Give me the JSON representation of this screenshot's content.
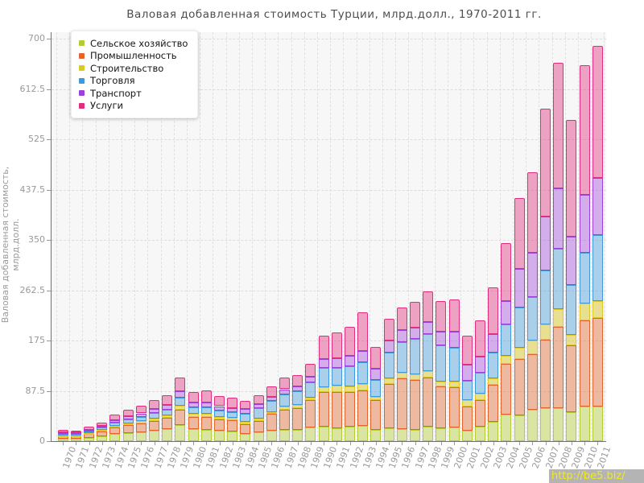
{
  "title": "Валовая добавленная стоимость Турции, млрд.долл., 1970-2011 гг.",
  "watermark": "http://be5.biz/",
  "y_axis": {
    "title": "Валовая добавленная стоимость, млрд.долл.",
    "ticks": [
      0,
      87.5,
      175,
      262.5,
      350,
      437.5,
      525,
      612.5,
      700
    ]
  },
  "chart_data": {
    "type": "bar",
    "stacked": true,
    "title": "Валовая добавленная стоимость Турции, млрд.долл., 1970-2011 гг.",
    "xlabel": "",
    "ylabel": "Валовая добавленная стоимость, млрд.долл.",
    "ylim": [
      0,
      700
    ],
    "y_ticks": [
      0,
      87.5,
      175,
      262.5,
      350,
      437.5,
      525,
      612.5,
      700
    ],
    "grid": true,
    "legend_position": "top-left",
    "units": "billions USD",
    "categories": [
      1970,
      1971,
      1972,
      1973,
      1974,
      1975,
      1976,
      1977,
      1978,
      1979,
      1980,
      1981,
      1982,
      1983,
      1984,
      1985,
      1986,
      1987,
      1988,
      1989,
      1990,
      1991,
      1992,
      1993,
      1994,
      1995,
      1996,
      1997,
      1998,
      1999,
      2000,
      2001,
      2002,
      2003,
      2004,
      2005,
      2006,
      2007,
      2008,
      2009,
      2010,
      2011
    ],
    "series": [
      {
        "name": "Сельское хозяйство",
        "color": "#b3cc33",
        "fill": "rgba(179,204,51,0.42)",
        "values": [
          4.8,
          4.6,
          6.2,
          8.5,
          12.5,
          14,
          16,
          18,
          20.5,
          28.5,
          21,
          20,
          18,
          17,
          13.2,
          15.5,
          18,
          20,
          19,
          24,
          25,
          22.5,
          25,
          26,
          20,
          22.5,
          21,
          20,
          25,
          22.5,
          24,
          18,
          25,
          33,
          46,
          45,
          55,
          58,
          58,
          51,
          60,
          60
        ]
      },
      {
        "name": "Промышленность",
        "color": "#e2632b",
        "fill": "rgba(226,99,43,0.42)",
        "values": [
          4.5,
          4.4,
          5.8,
          8.9,
          11.5,
          13.5,
          15,
          17.5,
          19.5,
          26.5,
          21.5,
          22,
          20,
          19,
          16.5,
          20,
          29,
          35,
          39,
          47,
          61,
          63,
          61,
          62.5,
          51,
          76.5,
          88,
          86,
          86,
          72.5,
          70,
          42.5,
          47,
          64.5,
          89,
          97.5,
          96.5,
          118,
          141,
          115,
          150,
          154
        ]
      },
      {
        "name": "Строительство",
        "color": "#dcc829",
        "fill": "rgba(220,200,41,0.5)",
        "values": [
          1.2,
          1.2,
          1.5,
          2,
          2.6,
          3,
          3.4,
          4,
          4.5,
          6.2,
          5,
          5.1,
          4.6,
          4.4,
          3.5,
          3.5,
          4,
          4.7,
          4.7,
          4.5,
          8,
          10.5,
          9.5,
          11.5,
          5.6,
          10.5,
          10.5,
          10.2,
          11,
          8,
          9,
          11.5,
          10.5,
          11.5,
          13,
          20,
          24,
          27,
          30,
          19,
          30,
          30
        ]
      },
      {
        "name": "Торговля",
        "color": "#3e98da",
        "fill": "rgba(62,152,218,0.42)",
        "values": [
          2.7,
          2.7,
          3.5,
          4,
          5.8,
          6.8,
          7.7,
          9,
          10.2,
          14,
          11,
          11.5,
          10.3,
          9.8,
          14.3,
          18.5,
          18.5,
          22,
          24.5,
          27,
          33,
          32,
          35,
          37.5,
          29.5,
          44.5,
          53,
          61,
          64.5,
          63.5,
          60,
          33,
          36.5,
          44.5,
          55.5,
          69.5,
          75.5,
          94,
          106,
          87,
          88,
          114
        ]
      },
      {
        "name": "Транспорт",
        "color": "#9d40da",
        "fill": "rgba(157,64,218,0.4)",
        "values": [
          2.3,
          2.3,
          2.9,
          3.4,
          4.6,
          5.5,
          6.2,
          7.2,
          8.1,
          11,
          8.7,
          9,
          8,
          7.6,
          8,
          7,
          8,
          8.6,
          7.6,
          9.5,
          16,
          16.5,
          17.5,
          19.5,
          19.5,
          21,
          21,
          20.2,
          21,
          23.5,
          27,
          28,
          28,
          33,
          40,
          68,
          77,
          93,
          105,
          83,
          100,
          100
        ]
      },
      {
        "name": "Услуги",
        "color": "#e02d7d",
        "fill": "rgba(224,45,125,0.42)",
        "values": [
          3.8,
          3.7,
          6,
          6.1,
          9,
          11.2,
          12.7,
          15.3,
          17.2,
          23.8,
          18.8,
          20.4,
          18.1,
          17.2,
          14,
          15.5,
          17.5,
          19.7,
          20.2,
          22,
          41,
          44.5,
          51,
          67,
          38.4,
          38,
          38.5,
          44.6,
          53.5,
          53,
          57,
          50,
          63,
          80.5,
          101.5,
          123,
          139,
          188,
          218,
          203,
          226,
          229
        ]
      }
    ]
  }
}
